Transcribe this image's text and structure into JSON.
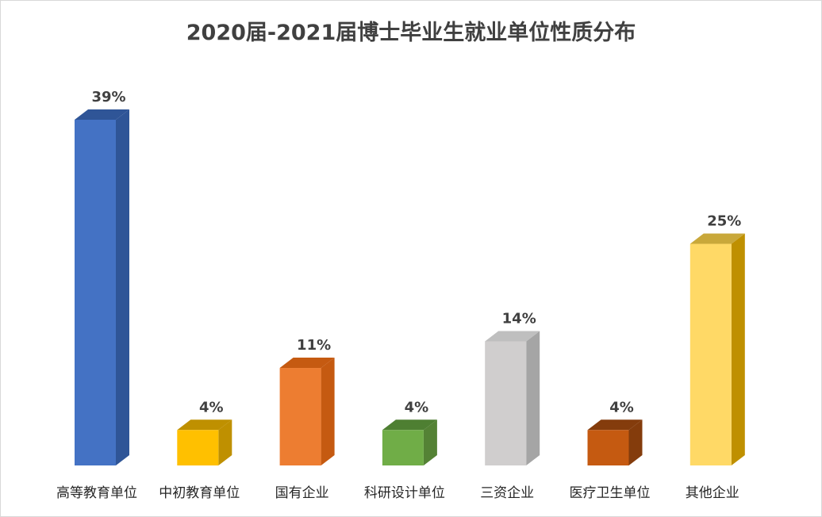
{
  "chart_data": {
    "type": "bar",
    "title": "2020届-2021届博士毕业生就业单位性质分布",
    "categories": [
      "高等教育单位",
      "中初教育单位",
      "国有企业",
      "科研设计单位",
      "三资企业",
      "医疗卫生单位",
      "其他企业"
    ],
    "values": [
      39,
      4,
      11,
      4,
      14,
      4,
      25
    ],
    "value_labels": [
      "39%",
      "4%",
      "11%",
      "4%",
      "14%",
      "4%",
      "25%"
    ],
    "unit": "%",
    "ylim": [
      0,
      39
    ],
    "grid": false,
    "legend": "none",
    "style": "3d-column",
    "colors": [
      "#4472C4",
      "#FFC000",
      "#ED7D31",
      "#70AD47",
      "#D0CECE",
      "#C55A11",
      "#FFD966"
    ],
    "side_colors": [
      "#2F5597",
      "#BF9000",
      "#C55A11",
      "#548235",
      "#A5A5A5",
      "#843C0C",
      "#BF9000"
    ],
    "top_colors": [
      "#2F5597",
      "#BF9000",
      "#C55A11",
      "#4E7F32",
      "#BFBFBF",
      "#843C0C",
      "#C9A83A"
    ]
  }
}
